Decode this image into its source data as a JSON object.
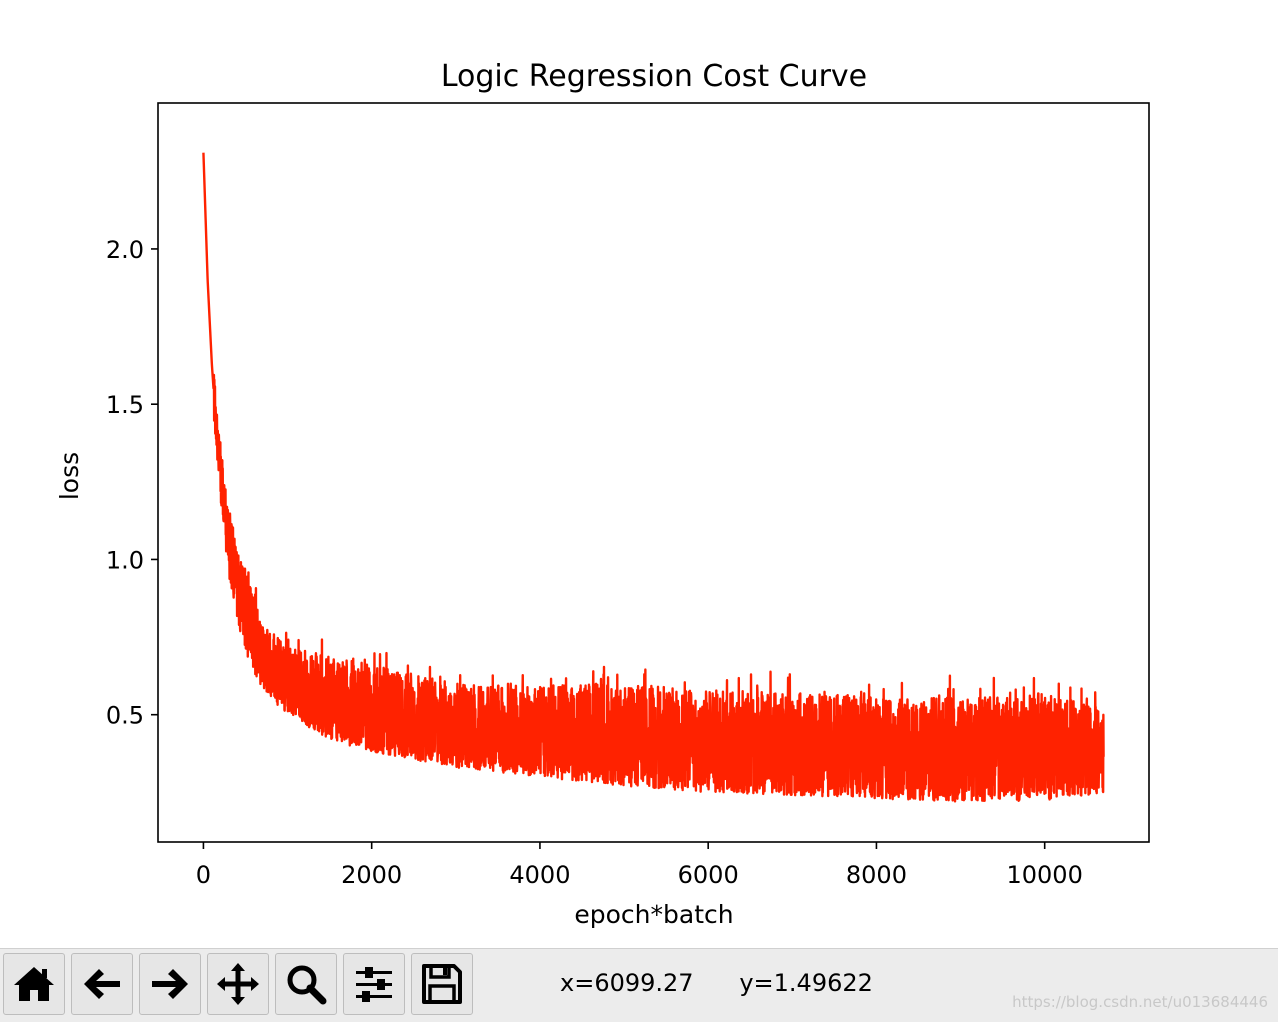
{
  "chart_data": {
    "type": "line",
    "title": "Logic Regression Cost Curve",
    "xlabel": "epoch*batch",
    "ylabel": "loss",
    "xlim": [
      -540,
      11240
    ],
    "ylim": [
      0.09,
      2.47
    ],
    "xticks": [
      0,
      2000,
      4000,
      6000,
      8000,
      10000
    ],
    "xtick_labels": [
      "0",
      "2000",
      "4000",
      "6000",
      "8000",
      "10000"
    ],
    "yticks": [
      0.5,
      1.0,
      1.5,
      2.0
    ],
    "ytick_labels": [
      "0.5",
      "1.0",
      "1.5",
      "2.0"
    ],
    "grid": false,
    "series": [
      {
        "color": "#ff2200",
        "x": [
          0,
          50,
          100,
          150,
          200,
          300,
          400,
          500,
          700,
          1000,
          1500,
          2000,
          3000,
          4000,
          5000,
          6000,
          7000,
          8000,
          9000,
          10000,
          10700
        ],
        "y_upper": [
          2.31,
          1.95,
          1.72,
          1.52,
          1.38,
          1.18,
          1.05,
          0.97,
          0.8,
          0.72,
          0.69,
          0.66,
          0.6,
          0.6,
          0.6,
          0.58,
          0.57,
          0.56,
          0.56,
          0.57,
          0.52
        ],
        "y_lower": [
          2.31,
          1.85,
          1.55,
          1.35,
          1.2,
          0.95,
          0.8,
          0.7,
          0.58,
          0.5,
          0.42,
          0.38,
          0.33,
          0.3,
          0.27,
          0.25,
          0.24,
          0.23,
          0.22,
          0.22,
          0.25
        ],
        "y_center": [
          2.31,
          1.9,
          1.63,
          1.43,
          1.29,
          1.06,
          0.92,
          0.83,
          0.68,
          0.6,
          0.54,
          0.5,
          0.45,
          0.43,
          0.41,
          0.39,
          0.38,
          0.38,
          0.37,
          0.37,
          0.36
        ]
      }
    ]
  },
  "toolbar": {
    "buttons": [
      {
        "name": "home-button",
        "icon": "home-icon"
      },
      {
        "name": "back-button",
        "icon": "arrow-left-icon"
      },
      {
        "name": "forward-button",
        "icon": "arrow-right-icon"
      },
      {
        "name": "pan-button",
        "icon": "move-icon"
      },
      {
        "name": "zoom-button",
        "icon": "magnifier-icon"
      },
      {
        "name": "configure-subplots-button",
        "icon": "sliders-icon"
      },
      {
        "name": "save-button",
        "icon": "floppy-disk-icon"
      }
    ],
    "coord_x": "x=6099.27",
    "coord_y": "y=1.49622"
  },
  "watermark": "https://blog.csdn.net/u013684446"
}
